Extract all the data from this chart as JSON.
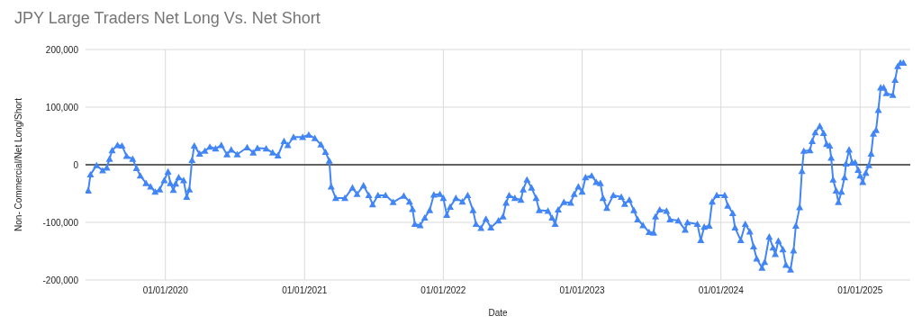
{
  "chart_data": {
    "type": "line",
    "title": "JPY Large Traders Net Long Vs. Net Short",
    "xlabel": "Date",
    "ylabel": "Non- Commercial/Net Long/Short",
    "x": [
      "2019-06-12",
      "2019-06-18",
      "2019-07-04",
      "2019-07-20",
      "2019-07-31",
      "2019-08-07",
      "2019-08-14",
      "2019-08-28",
      "2019-09-09",
      "2019-09-21",
      "2019-10-07",
      "2019-10-17",
      "2019-10-27",
      "2019-11-11",
      "2019-11-23",
      "2019-12-05",
      "2019-12-17",
      "2019-12-29",
      "2020-01-08",
      "2020-01-14",
      "2020-01-22",
      "2020-01-28",
      "2020-02-05",
      "2020-02-18",
      "2020-02-26",
      "2020-03-04",
      "2020-03-11",
      "2020-03-17",
      "2020-03-31",
      "2020-04-14",
      "2020-04-27",
      "2020-05-12",
      "2020-05-27",
      "2020-06-11",
      "2020-06-22",
      "2020-07-08",
      "2020-08-03",
      "2020-08-19",
      "2020-08-30",
      "2020-09-22",
      "2020-10-09",
      "2020-10-23",
      "2020-11-08",
      "2020-11-18",
      "2020-12-03",
      "2020-12-27",
      "2021-01-12",
      "2021-01-28",
      "2021-02-13",
      "2021-02-25",
      "2021-03-07",
      "2021-03-12",
      "2021-03-24",
      "2021-04-17",
      "2021-05-07",
      "2021-05-19",
      "2021-06-05",
      "2021-06-19",
      "2021-06-29",
      "2021-07-13",
      "2021-08-02",
      "2021-08-22",
      "2021-09-19",
      "2021-10-04",
      "2021-10-12",
      "2021-10-18",
      "2021-11-01",
      "2021-11-13",
      "2021-11-26",
      "2021-12-07",
      "2021-12-23",
      "2022-01-01",
      "2022-01-10",
      "2022-01-19",
      "2022-02-03",
      "2022-02-20",
      "2022-03-06",
      "2022-03-20",
      "2022-03-28",
      "2022-04-10",
      "2022-04-23",
      "2022-05-06",
      "2022-05-26",
      "2022-06-07",
      "2022-06-15",
      "2022-06-23",
      "2022-07-08",
      "2022-07-24",
      "2022-07-30",
      "2022-08-09",
      "2022-08-21",
      "2022-09-02",
      "2022-09-10",
      "2022-10-03",
      "2022-10-14",
      "2022-10-22",
      "2022-10-30",
      "2022-11-14",
      "2022-12-02",
      "2022-12-11",
      "2022-12-22",
      "2023-01-01",
      "2023-01-10",
      "2023-01-26",
      "2023-02-07",
      "2023-02-18",
      "2023-02-25",
      "2023-03-07",
      "2023-03-24",
      "2023-04-14",
      "2023-04-23",
      "2023-05-05",
      "2023-05-17",
      "2023-05-27",
      "2023-06-10",
      "2023-06-26",
      "2023-07-08",
      "2023-07-13",
      "2023-07-24",
      "2023-08-11",
      "2023-08-20",
      "2023-09-11",
      "2023-09-29",
      "2023-10-05",
      "2023-10-31",
      "2023-11-09",
      "2023-11-18",
      "2023-12-01",
      "2023-12-09",
      "2023-12-21",
      "2024-01-11",
      "2024-01-19",
      "2024-02-01",
      "2024-02-07",
      "2024-02-22",
      "2024-03-05",
      "2024-03-17",
      "2024-03-27",
      "2024-04-04",
      "2024-04-18",
      "2024-04-25",
      "2024-05-07",
      "2024-05-17",
      "2024-05-23",
      "2024-05-31",
      "2024-06-12",
      "2024-06-20",
      "2024-07-02",
      "2024-07-10",
      "2024-07-16",
      "2024-07-26",
      "2024-08-01",
      "2024-08-06",
      "2024-08-22",
      "2024-08-28",
      "2024-09-05",
      "2024-09-17",
      "2024-09-27",
      "2024-10-05",
      "2024-10-13",
      "2024-10-17",
      "2024-10-22",
      "2024-10-30",
      "2024-11-05",
      "2024-11-13",
      "2024-11-21",
      "2024-11-25",
      "2024-12-03",
      "2024-12-11",
      "2024-12-19",
      "2024-12-27",
      "2025-01-01",
      "2025-01-08",
      "2025-01-16",
      "2025-01-24",
      "2025-01-30",
      "2025-02-05",
      "2025-02-12",
      "2025-02-18",
      "2025-02-24",
      "2025-03-04",
      "2025-03-11",
      "2025-03-28",
      "2025-04-03",
      "2025-04-10",
      "2025-04-17",
      "2025-04-25"
    ],
    "series": [
      {
        "color": "#4285f4",
        "values": [
          -45000,
          -17000,
          -1000,
          -10000,
          -5000,
          10000,
          25000,
          34000,
          33000,
          15000,
          10000,
          -6000,
          -19000,
          -32000,
          -38000,
          -47000,
          -43000,
          -27000,
          -12000,
          -32000,
          -44000,
          -33000,
          -22000,
          -27000,
          -56000,
          -43000,
          8000,
          33000,
          19000,
          24000,
          31000,
          28000,
          34000,
          18000,
          26000,
          18000,
          30000,
          21000,
          29000,
          28000,
          21000,
          16000,
          41000,
          34000,
          48000,
          48000,
          52000,
          46000,
          35000,
          22000,
          7000,
          -38000,
          -58000,
          -58000,
          -40000,
          -51000,
          -36000,
          -53000,
          -69000,
          -53000,
          -53000,
          -65000,
          -54000,
          -64000,
          -77000,
          -103000,
          -105000,
          -92000,
          -79000,
          -52000,
          -51000,
          -58000,
          -87000,
          -73000,
          -58000,
          -64000,
          -53000,
          -79000,
          -103000,
          -110000,
          -94000,
          -109000,
          -97000,
          -90000,
          -66000,
          -53000,
          -58000,
          -61000,
          -43000,
          -26000,
          -40000,
          -58000,
          -79000,
          -80000,
          -92000,
          -103000,
          -78000,
          -65000,
          -66000,
          -51000,
          -38000,
          -47000,
          -22000,
          -19000,
          -30000,
          -32000,
          -58000,
          -75000,
          -53000,
          -56000,
          -68000,
          -61000,
          -79000,
          -95000,
          -105000,
          -117000,
          -118000,
          -90000,
          -78000,
          -80000,
          -95000,
          -97000,
          -113000,
          -100000,
          -103000,
          -131000,
          -108000,
          -106000,
          -64000,
          -53000,
          -53000,
          -71000,
          -84000,
          -109000,
          -131000,
          -103000,
          -116000,
          -142000,
          -163000,
          -179000,
          -169000,
          -125000,
          -144000,
          -155000,
          -132000,
          -147000,
          -174000,
          -182000,
          -149000,
          -106000,
          -74000,
          -11000,
          24000,
          25000,
          41000,
          56000,
          67000,
          55000,
          36000,
          33000,
          12000,
          -26000,
          -45000,
          -65000,
          -47000,
          -22000,
          2000,
          26000,
          4000,
          4000,
          -9000,
          -19000,
          -30000,
          -14000,
          -1000,
          19000,
          54000,
          60000,
          95000,
          134000,
          134000,
          124000,
          121000,
          147000,
          171000,
          177000,
          177000
        ]
      }
    ],
    "xlim": [
      "2019-06-05",
      "2025-05-13"
    ],
    "xticks": [
      {
        "value": "2020-01-01",
        "label": "01/01/2020"
      },
      {
        "value": "2021-01-01",
        "label": "01/01/2021"
      },
      {
        "value": "2022-01-01",
        "label": "01/01/2022"
      },
      {
        "value": "2023-01-01",
        "label": "01/01/2023"
      },
      {
        "value": "2024-01-01",
        "label": "01/01/2024"
      },
      {
        "value": "2025-01-01",
        "label": "01/01/2025"
      }
    ],
    "ylim": [
      -200000,
      200000
    ],
    "yticks": [
      {
        "value": -200000,
        "label": "-200,000"
      },
      {
        "value": -100000,
        "label": "-100,000"
      },
      {
        "value": 0,
        "label": "0"
      },
      {
        "value": 100000,
        "label": "100,000"
      },
      {
        "value": 200000,
        "label": "200,000"
      }
    ],
    "ref_lines": [
      {
        "axis": "y",
        "value": 0,
        "color": "#333333"
      }
    ],
    "grid": true,
    "legend": false,
    "marker": "triangle",
    "line_style": "solid"
  }
}
